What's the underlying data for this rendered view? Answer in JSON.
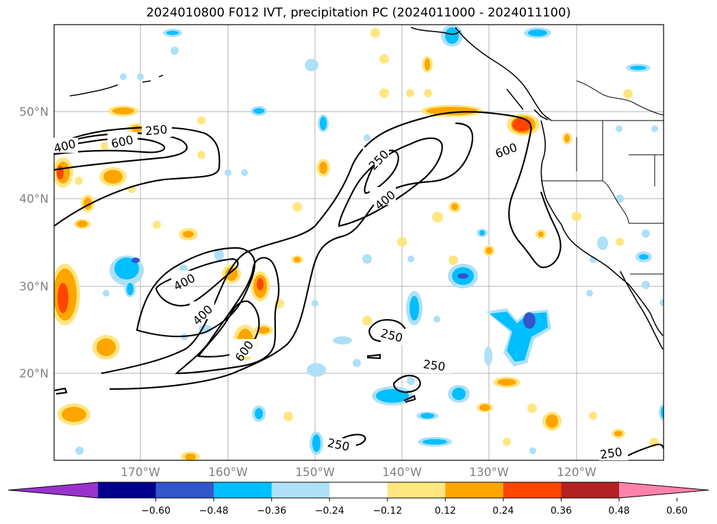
{
  "title": "2024010800 F012 IVT, precipitation PC (2024011000 - 2024011100)",
  "map": {
    "lat_labels": [
      "50°N",
      "40°N",
      "30°N",
      "20°N"
    ],
    "lon_labels": [
      "170°W",
      "160°W",
      "150°W",
      "140°W",
      "130°W",
      "120°W"
    ],
    "contour_levels": [
      "250",
      "400",
      "600"
    ],
    "contour_labels": [
      "400",
      "600",
      "250",
      "400",
      "600",
      "400",
      "250",
      "400",
      "600",
      "250",
      "250",
      "250",
      "250"
    ]
  },
  "colorbar": {
    "ticks": [
      "−0.60",
      "−0.48",
      "−0.36",
      "−0.24",
      "−0.12",
      "0.12",
      "0.24",
      "0.36",
      "0.48",
      "0.60"
    ],
    "colors": [
      "#9933cc",
      "#00008b",
      "#3355cc",
      "#00bfff",
      "#aee0f8",
      "#ffffff",
      "#ffe680",
      "#ffa500",
      "#ff4500",
      "#b22222",
      "#ff82ab"
    ]
  }
}
